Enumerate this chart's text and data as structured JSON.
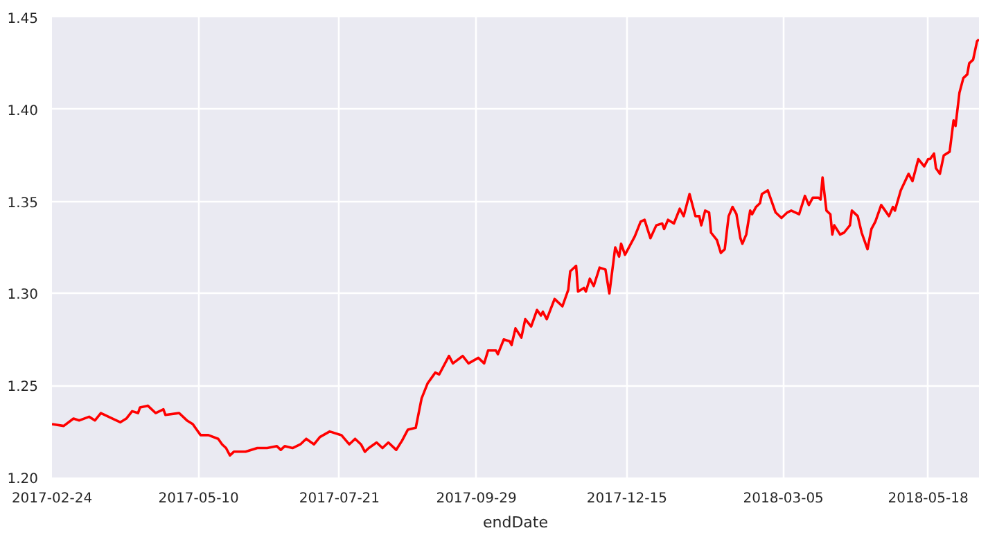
{
  "chart_data": {
    "type": "line",
    "xlabel": "endDate",
    "x": [
      "2017-02-24",
      "2017-03-02",
      "2017-03-07",
      "2017-03-10",
      "2017-03-15",
      "2017-03-18",
      "2017-03-21",
      "2017-03-27",
      "2017-03-31",
      "2017-04-03",
      "2017-04-06",
      "2017-04-09",
      "2017-04-10",
      "2017-04-14",
      "2017-04-18",
      "2017-04-22",
      "2017-04-23",
      "2017-04-30",
      "2017-05-04",
      "2017-05-07",
      "2017-05-09",
      "2017-05-11",
      "2017-05-15",
      "2017-05-20",
      "2017-05-22",
      "2017-05-24",
      "2017-05-26",
      "2017-05-28",
      "2017-06-03",
      "2017-06-09",
      "2017-06-14",
      "2017-06-19",
      "2017-06-21",
      "2017-06-23",
      "2017-06-27",
      "2017-07-01",
      "2017-07-04",
      "2017-07-08",
      "2017-07-11",
      "2017-07-16",
      "2017-07-22",
      "2017-07-26",
      "2017-07-29",
      "2017-08-01",
      "2017-08-03",
      "2017-08-05",
      "2017-08-09",
      "2017-08-12",
      "2017-08-15",
      "2017-08-19",
      "2017-08-22",
      "2017-08-25",
      "2017-08-29",
      "2017-09-01",
      "2017-09-04",
      "2017-09-08",
      "2017-09-10",
      "2017-09-15",
      "2017-09-17",
      "2017-09-22",
      "2017-09-25",
      "2017-09-30",
      "2017-10-03",
      "2017-10-05",
      "2017-10-09",
      "2017-10-10",
      "2017-10-13",
      "2017-10-16",
      "2017-10-17",
      "2017-10-19",
      "2017-10-22",
      "2017-10-24",
      "2017-10-27",
      "2017-10-30",
      "2017-11-01",
      "2017-11-02",
      "2017-11-04",
      "2017-11-08",
      "2017-11-12",
      "2017-11-15",
      "2017-11-16",
      "2017-11-19",
      "2017-11-20",
      "2017-11-23",
      "2017-11-24",
      "2017-11-26",
      "2017-11-28",
      "2017-12-01",
      "2017-12-04",
      "2017-12-06",
      "2017-12-09",
      "2017-12-11",
      "2017-12-12",
      "2017-12-14",
      "2017-12-19",
      "2017-12-22",
      "2017-12-24",
      "2017-12-27",
      "2017-12-30",
      "2018-01-02",
      "2018-01-03",
      "2018-01-05",
      "2018-01-08",
      "2018-01-11",
      "2018-01-13",
      "2018-01-16",
      "2018-01-19",
      "2018-01-21",
      "2018-01-22",
      "2018-01-24",
      "2018-01-26",
      "2018-01-27",
      "2018-01-30",
      "2018-02-01",
      "2018-02-03",
      "2018-02-05",
      "2018-02-07",
      "2018-02-09",
      "2018-02-11",
      "2018-02-12",
      "2018-02-14",
      "2018-02-16",
      "2018-02-17",
      "2018-02-19",
      "2018-02-21",
      "2018-02-22",
      "2018-02-25",
      "2018-03-01",
      "2018-03-04",
      "2018-03-07",
      "2018-03-09",
      "2018-03-13",
      "2018-03-16",
      "2018-03-18",
      "2018-03-20",
      "2018-03-23",
      "2018-03-24",
      "2018-03-25",
      "2018-03-27",
      "2018-03-29",
      "2018-03-30",
      "2018-03-31",
      "2018-04-03",
      "2018-04-05",
      "2018-04-08",
      "2018-04-09",
      "2018-04-12",
      "2018-04-14",
      "2018-04-17",
      "2018-04-19",
      "2018-04-21",
      "2018-04-24",
      "2018-04-28",
      "2018-04-30",
      "2018-05-01",
      "2018-05-04",
      "2018-05-08",
      "2018-05-10",
      "2018-05-13",
      "2018-05-16",
      "2018-05-18",
      "2018-05-19",
      "2018-05-21",
      "2018-05-22",
      "2018-05-24",
      "2018-05-26",
      "2018-05-29",
      "2018-05-31",
      "2018-06-01",
      "2018-06-03",
      "2018-06-05",
      "2018-06-07",
      "2018-06-08",
      "2018-06-10",
      "2018-06-12",
      "2018-06-13"
    ],
    "series": [
      {
        "color": "#ff0000",
        "values": [
          1.229,
          1.228,
          1.232,
          1.231,
          1.233,
          1.231,
          1.235,
          1.232,
          1.23,
          1.232,
          1.236,
          1.235,
          1.238,
          1.239,
          1.235,
          1.237,
          1.234,
          1.235,
          1.231,
          1.229,
          1.226,
          1.223,
          1.223,
          1.221,
          1.218,
          1.216,
          1.212,
          1.214,
          1.214,
          1.216,
          1.216,
          1.217,
          1.215,
          1.217,
          1.216,
          1.218,
          1.221,
          1.218,
          1.222,
          1.225,
          1.223,
          1.218,
          1.221,
          1.218,
          1.214,
          1.216,
          1.219,
          1.216,
          1.219,
          1.215,
          1.22,
          1.226,
          1.227,
          1.243,
          1.251,
          1.257,
          1.256,
          1.266,
          1.262,
          1.266,
          1.262,
          1.265,
          1.262,
          1.269,
          1.269,
          1.267,
          1.275,
          1.274,
          1.272,
          1.281,
          1.276,
          1.286,
          1.282,
          1.291,
          1.288,
          1.29,
          1.286,
          1.297,
          1.293,
          1.302,
          1.312,
          1.315,
          1.301,
          1.303,
          1.301,
          1.308,
          1.304,
          1.314,
          1.313,
          1.3,
          1.325,
          1.32,
          1.327,
          1.321,
          1.331,
          1.339,
          1.34,
          1.33,
          1.337,
          1.338,
          1.335,
          1.34,
          1.338,
          1.346,
          1.342,
          1.354,
          1.342,
          1.342,
          1.337,
          1.345,
          1.344,
          1.333,
          1.329,
          1.322,
          1.324,
          1.342,
          1.347,
          1.343,
          1.33,
          1.327,
          1.332,
          1.345,
          1.343,
          1.347,
          1.349,
          1.354,
          1.356,
          1.344,
          1.341,
          1.344,
          1.345,
          1.343,
          1.353,
          1.348,
          1.352,
          1.352,
          1.351,
          1.363,
          1.345,
          1.343,
          1.332,
          1.337,
          1.332,
          1.333,
          1.337,
          1.345,
          1.342,
          1.333,
          1.324,
          1.335,
          1.339,
          1.348,
          1.342,
          1.347,
          1.345,
          1.356,
          1.365,
          1.361,
          1.373,
          1.369,
          1.373,
          1.373,
          1.376,
          1.368,
          1.365,
          1.375,
          1.377,
          1.394,
          1.391,
          1.409,
          1.417,
          1.419,
          1.425,
          1.427,
          1.437,
          1.438
        ]
      }
    ],
    "xlim": [
      "2017-02-24",
      "2018-06-13"
    ],
    "xticks": [
      "2017-02-24",
      "2017-05-10",
      "2017-07-21",
      "2017-09-29",
      "2017-12-15",
      "2018-03-05",
      "2018-05-18"
    ],
    "ylim": [
      1.2,
      1.45
    ],
    "yticks": [
      {
        "value": 1.2,
        "label": "1.20"
      },
      {
        "value": 1.25,
        "label": "1.25"
      },
      {
        "value": 1.3,
        "label": "1.30"
      },
      {
        "value": 1.35,
        "label": "1.35"
      },
      {
        "value": 1.4,
        "label": "1.40"
      },
      {
        "value": 1.45,
        "label": "1.45"
      }
    ],
    "grid": true,
    "line_style": "solid",
    "marker": "none"
  }
}
